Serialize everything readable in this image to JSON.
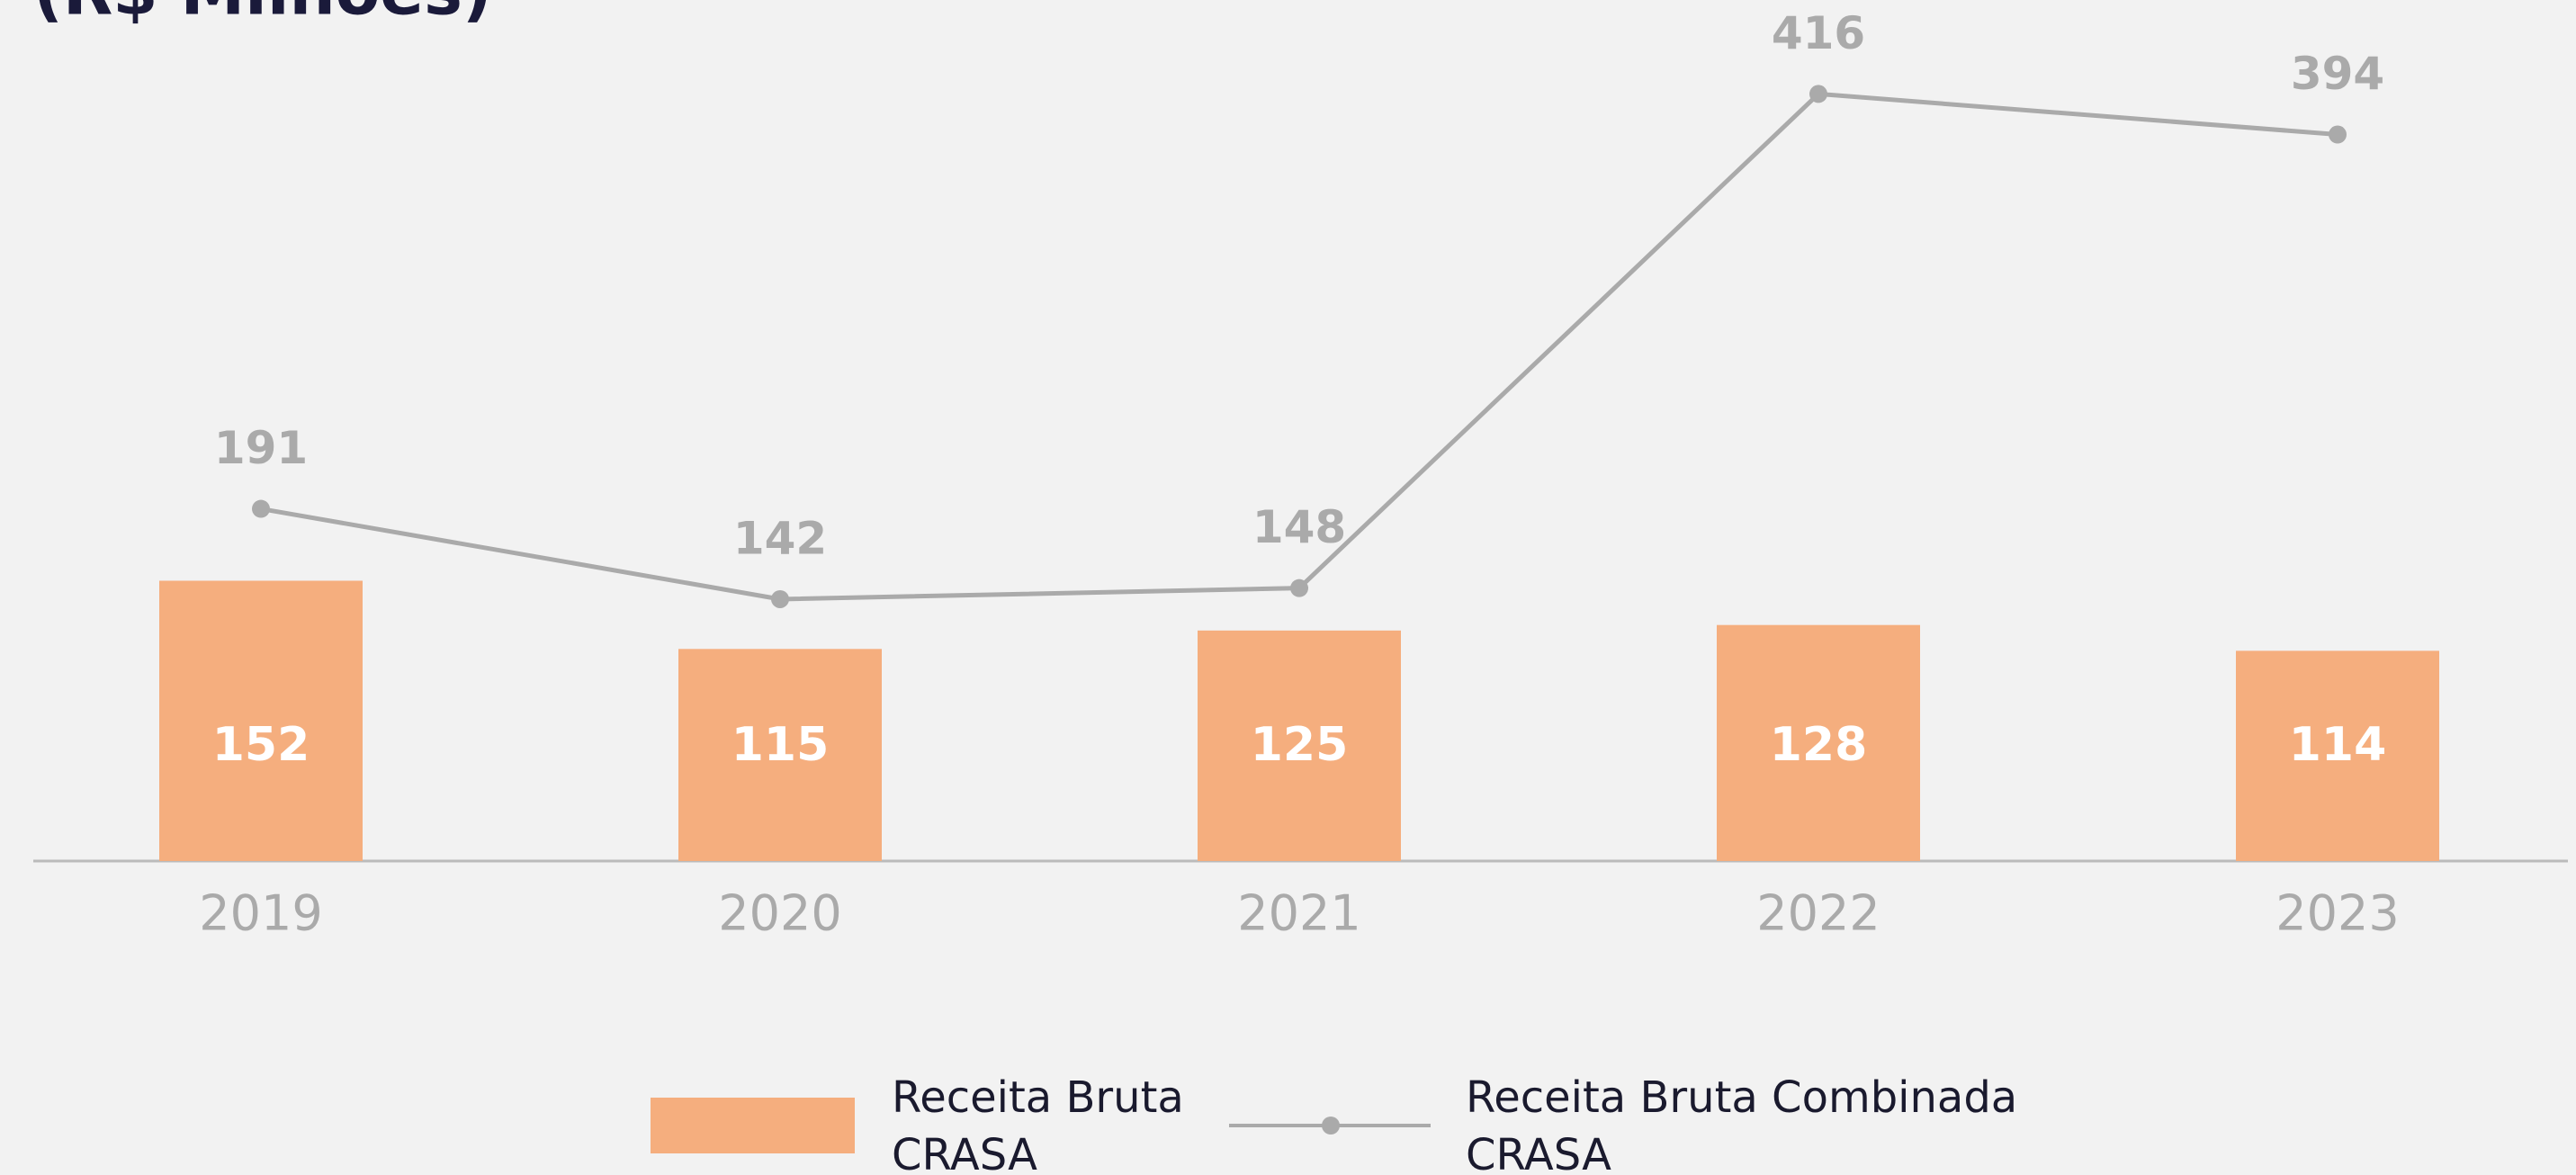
{
  "chart_data": {
    "type": "bar_line",
    "title": "(R$ Milhões)",
    "categories": [
      "2019",
      "2020",
      "2021",
      "2022",
      "2023"
    ],
    "series": [
      {
        "name": "Receita Bruta CRASA",
        "type": "bar",
        "color": "#f5ae7e",
        "values": [
          152,
          115,
          125,
          128,
          114
        ]
      },
      {
        "name": "Receita Bruta Combinada CRASA",
        "type": "line",
        "color": "#aaaaaa",
        "values": [
          191,
          142,
          148,
          416,
          394
        ]
      }
    ],
    "ylim": [
      0,
      465
    ]
  }
}
